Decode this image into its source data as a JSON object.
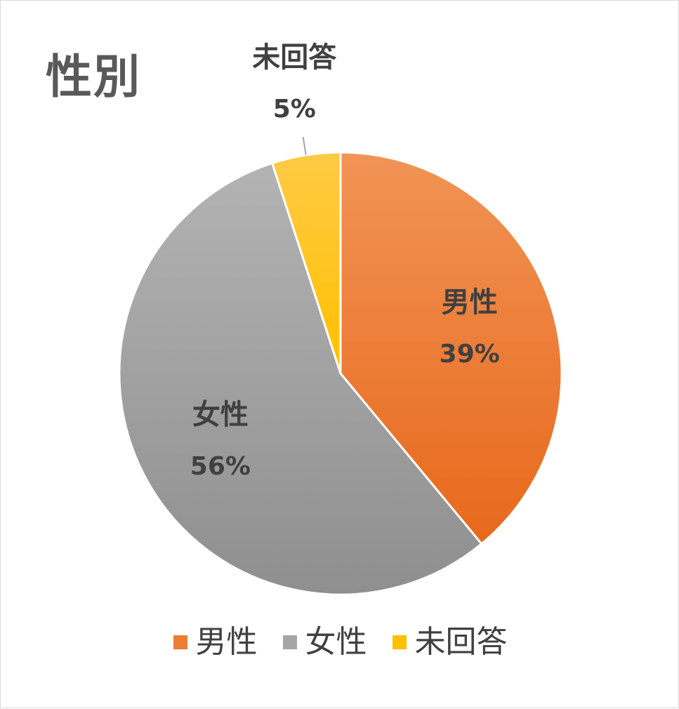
{
  "chart_data": {
    "type": "pie",
    "title": "性別",
    "categories": [
      "男性",
      "女性",
      "未回答"
    ],
    "values": [
      39,
      56,
      5
    ],
    "value_labels": [
      "39%",
      "56%",
      "5%"
    ],
    "colors": [
      "#ED7D31",
      "#A5A5A5",
      "#FFC000"
    ],
    "legend_position": "bottom",
    "start_angle_deg": 0,
    "direction": "clockwise"
  }
}
